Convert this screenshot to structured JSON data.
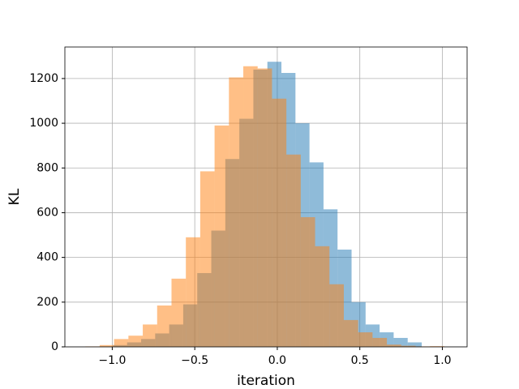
{
  "chart_data": {
    "type": "histogram",
    "x_label": "iteration",
    "y_label": "KL",
    "xlim": [
      -1.287,
      1.15
    ],
    "ylim": [
      0,
      1341
    ],
    "xticks": [
      {
        "value": -1.0,
        "label": "−1.0"
      },
      {
        "value": -0.5,
        "label": "−0.5"
      },
      {
        "value": 0,
        "label": "0.0"
      },
      {
        "value": 0.5,
        "label": "0.5"
      },
      {
        "value": 1.0,
        "label": "1.0"
      }
    ],
    "yticks": [
      0,
      200,
      400,
      600,
      800,
      1000,
      1200
    ],
    "grid": true,
    "series": [
      {
        "color": "#1f77b4",
        "opacity": 0.5,
        "bins": [
          -1.08,
          -0.995,
          -0.91,
          -0.825,
          -0.74,
          -0.655,
          -0.57,
          -0.485,
          -0.4,
          -0.315,
          -0.23,
          -0.145,
          -0.06,
          0.025,
          0.11,
          0.195,
          0.28,
          0.365,
          0.45,
          0.535,
          0.62,
          0.705,
          0.79,
          0.875
        ],
        "values": [
          2,
          8,
          20,
          35,
          60,
          100,
          190,
          330,
          520,
          840,
          1020,
          1240,
          1275,
          1225,
          1000,
          825,
          615,
          435,
          200,
          100,
          65,
          40,
          20
        ]
      },
      {
        "color": "#ff7f0e",
        "opacity": 0.5,
        "bins": [
          -1.163,
          -1.076,
          -0.989,
          -0.902,
          -0.815,
          -0.728,
          -0.641,
          -0.554,
          -0.467,
          -0.38,
          -0.293,
          -0.206,
          -0.119,
          -0.032,
          0.055,
          0.142,
          0.229,
          0.316,
          0.403,
          0.49,
          0.577,
          0.664,
          0.751,
          0.838,
          0.925,
          1.012
        ],
        "values": [
          2,
          8,
          35,
          50,
          100,
          185,
          305,
          490,
          785,
          990,
          1205,
          1255,
          1245,
          1110,
          860,
          580,
          450,
          280,
          120,
          65,
          40,
          10,
          5,
          2,
          3
        ]
      }
    ]
  }
}
